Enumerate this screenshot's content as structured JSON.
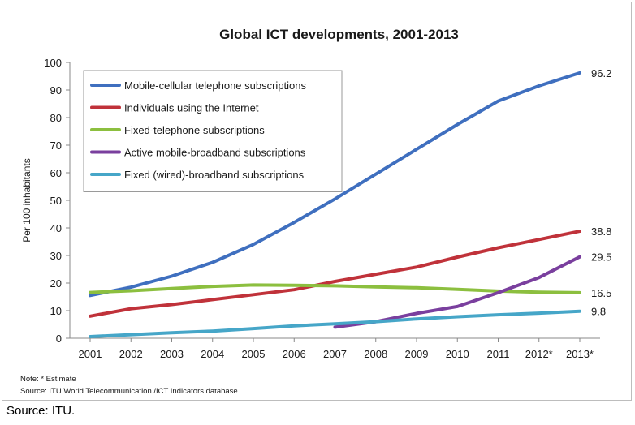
{
  "chart_data": {
    "type": "line",
    "title": "Global ICT developments, 2001-2013",
    "ylabel": "Per 100 inhabitants",
    "xlabel": "",
    "ylim": [
      0,
      100
    ],
    "yticks": [
      0,
      10,
      20,
      30,
      40,
      50,
      60,
      70,
      80,
      90,
      100
    ],
    "x": [
      "2001",
      "2002",
      "2003",
      "2004",
      "2005",
      "2006",
      "2007",
      "2008",
      "2009",
      "2010",
      "2011",
      "2012*",
      "2013*"
    ],
    "grid": false,
    "legend_position": "top-left",
    "series": [
      {
        "name": "Mobile-cellular telephone subscriptions",
        "color": "#3f6fbf",
        "values": [
          15.5,
          18.5,
          22.5,
          27.5,
          34,
          42,
          50.5,
          59.5,
          68.5,
          77.5,
          86,
          91.5,
          96.2
        ],
        "end_label": "96.2"
      },
      {
        "name": "Individuals using the Internet",
        "color": "#c0323a",
        "values": [
          8,
          10.7,
          12.2,
          14,
          15.8,
          17.6,
          20.6,
          23.2,
          25.8,
          29.4,
          32.8,
          35.8,
          38.8
        ],
        "end_label": "38.8"
      },
      {
        "name": "Fixed-telephone subscriptions",
        "color": "#8cbf3f",
        "values": [
          16.6,
          17.2,
          18,
          18.8,
          19.3,
          19.2,
          19,
          18.6,
          18.3,
          17.7,
          17.1,
          16.7,
          16.5
        ],
        "end_label": "16.5"
      },
      {
        "name": "Active mobile-broadband subscriptions",
        "color": "#7a3f9e",
        "values": [
          null,
          null,
          null,
          null,
          null,
          null,
          4,
          6,
          9,
          11.5,
          16.5,
          22,
          29.5
        ],
        "end_label": "29.5"
      },
      {
        "name": "Fixed (wired)-broadband subscriptions",
        "color": "#46a6c8",
        "values": [
          0.6,
          1.3,
          2,
          2.6,
          3.5,
          4.5,
          5.2,
          6,
          7,
          7.8,
          8.5,
          9.1,
          9.8
        ],
        "end_label": "9.8"
      }
    ],
    "notes": [
      "Note: * Estimate",
      "Source:  ITU World Telecommunication /ICT Indicators database"
    ]
  },
  "caption": "Source: ITU."
}
